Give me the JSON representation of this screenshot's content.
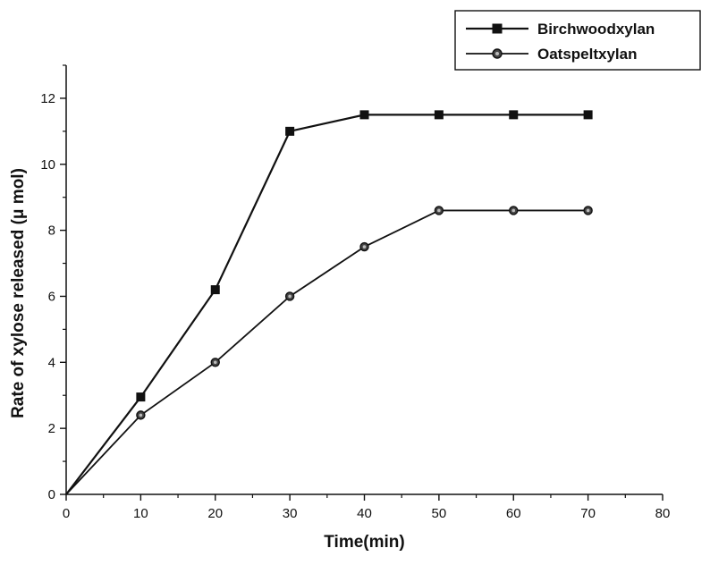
{
  "chart_data": {
    "type": "line",
    "title": "",
    "xlabel": "Time(min)",
    "ylabel": "Rate of xylose released (μ mol)",
    "xlim": [
      0,
      80
    ],
    "ylim": [
      0,
      13
    ],
    "x_ticks": [
      0,
      10,
      20,
      30,
      40,
      50,
      60,
      70,
      80
    ],
    "y_ticks": [
      0,
      2,
      4,
      6,
      8,
      10,
      12
    ],
    "x_tick_labels": [
      "0",
      "10",
      "20",
      "30",
      "40",
      "50",
      "60",
      "70",
      "80"
    ],
    "y_tick_labels": [
      "0",
      "2",
      "4",
      "6",
      "8",
      "10",
      "12"
    ],
    "grid": false,
    "legend_position": "top-right",
    "series": [
      {
        "name": "Birchwoodxylan",
        "marker": "square",
        "color": "#111111",
        "x": [
          0,
          10,
          20,
          30,
          40,
          50,
          60,
          70
        ],
        "values": [
          0,
          2.95,
          6.2,
          11.0,
          11.5,
          11.5,
          11.5,
          11.5
        ]
      },
      {
        "name": "Oatspeltxylan",
        "marker": "circle",
        "color": "#111111",
        "x": [
          0,
          10,
          20,
          30,
          40,
          50,
          60,
          70
        ],
        "values": [
          0,
          2.4,
          4.0,
          6.0,
          7.5,
          8.6,
          8.6,
          8.6
        ]
      }
    ]
  }
}
